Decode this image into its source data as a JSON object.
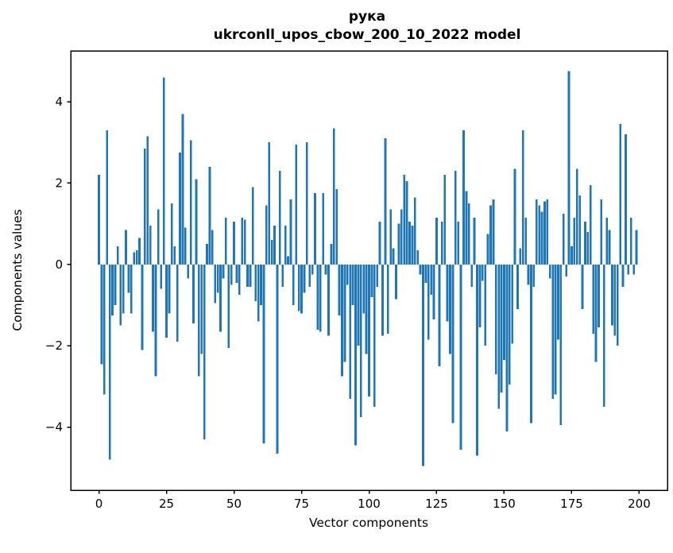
{
  "figure": {
    "title_line1": "рука",
    "title_line2": "ukrconll_upos_cbow_200_10_2022 model",
    "xlabel": "Vector components",
    "ylabel": "Components values"
  },
  "chart_data": {
    "type": "bar",
    "title": "рука — ukrconll_upos_cbow_200_10_2022 model",
    "xlabel": "Vector components",
    "ylabel": "Components values",
    "legend": "none",
    "grid": false,
    "bar_color": "#1f77b4",
    "axes_color": "#000000",
    "x_start": 0,
    "x_ticks": [
      0,
      25,
      50,
      75,
      100,
      125,
      150,
      175,
      200
    ],
    "y_ticks": [
      -4,
      -2,
      0,
      2,
      4
    ],
    "xlim": [
      -10.45,
      210.45
    ],
    "ylim": [
      -5.55,
      5.25
    ],
    "bar_width": 0.8,
    "values": [
      2.2,
      -2.45,
      -3.2,
      3.3,
      -4.8,
      -1.25,
      -1.0,
      0.45,
      -1.5,
      -1.2,
      0.85,
      -0.7,
      -1.2,
      0.3,
      0.35,
      0.65,
      -2.1,
      2.85,
      3.15,
      0.95,
      -1.65,
      -2.75,
      1.35,
      -0.6,
      4.6,
      -1.8,
      -1.2,
      1.5,
      0.45,
      -1.9,
      2.75,
      3.7,
      0.9,
      -0.35,
      3.05,
      -1.45,
      2.1,
      -2.75,
      -2.2,
      -4.3,
      0.5,
      2.4,
      0.85,
      -0.95,
      -0.7,
      -1.65,
      -0.35,
      1.15,
      -2.05,
      -0.5,
      1.05,
      -0.45,
      -0.75,
      1.15,
      1.1,
      -0.55,
      -0.55,
      1.9,
      -0.9,
      -1.4,
      -1.0,
      -4.4,
      1.45,
      3.0,
      0.6,
      0.95,
      -4.65,
      2.3,
      -0.55,
      0.95,
      0.2,
      1.6,
      -1.0,
      2.95,
      -1.15,
      -1.2,
      -0.7,
      3.0,
      -0.55,
      -0.25,
      1.75,
      -1.6,
      -1.65,
      1.75,
      -0.25,
      -1.75,
      0.5,
      3.35,
      1.85,
      -1.25,
      -2.75,
      -2.4,
      -0.5,
      -3.3,
      -1.0,
      -4.45,
      -2.0,
      -3.75,
      -1.2,
      -2.2,
      -3.25,
      -0.8,
      -3.5,
      -0.55,
      1.05,
      -1.75,
      3.1,
      -1.7,
      1.35,
      0.4,
      -0.85,
      1.0,
      1.35,
      2.2,
      2.05,
      1.05,
      0.95,
      1.65,
      0.35,
      -0.25,
      -4.95,
      -0.45,
      -1.85,
      -0.75,
      -1.35,
      1.15,
      -2.5,
      1.05,
      2.2,
      -1.4,
      -2.2,
      -3.9,
      2.3,
      1.05,
      -4.55,
      3.3,
      1.8,
      1.5,
      -0.55,
      1.15,
      -4.7,
      -1.55,
      -0.4,
      -2.0,
      0.75,
      1.45,
      1.6,
      -2.7,
      -3.55,
      -3.15,
      -2.35,
      -4.1,
      -2.95,
      -1.95,
      2.35,
      -1.1,
      0.4,
      3.3,
      1.15,
      -0.5,
      -3.9,
      -0.55,
      1.6,
      1.45,
      1.3,
      1.55,
      1.6,
      -0.35,
      -3.3,
      -3.2,
      -1.85,
      -3.95,
      1.25,
      -0.3,
      4.75,
      0.45,
      1.15,
      2.35,
      1.7,
      -1.1,
      1.05,
      0.8,
      1.95,
      -1.7,
      -2.4,
      -1.55,
      1.6,
      -3.5,
      1.15,
      0.85,
      -1.5,
      -1.75,
      -2.0,
      3.45,
      -0.55,
      3.2,
      -0.25,
      1.15,
      -0.25,
      0.85
    ]
  }
}
